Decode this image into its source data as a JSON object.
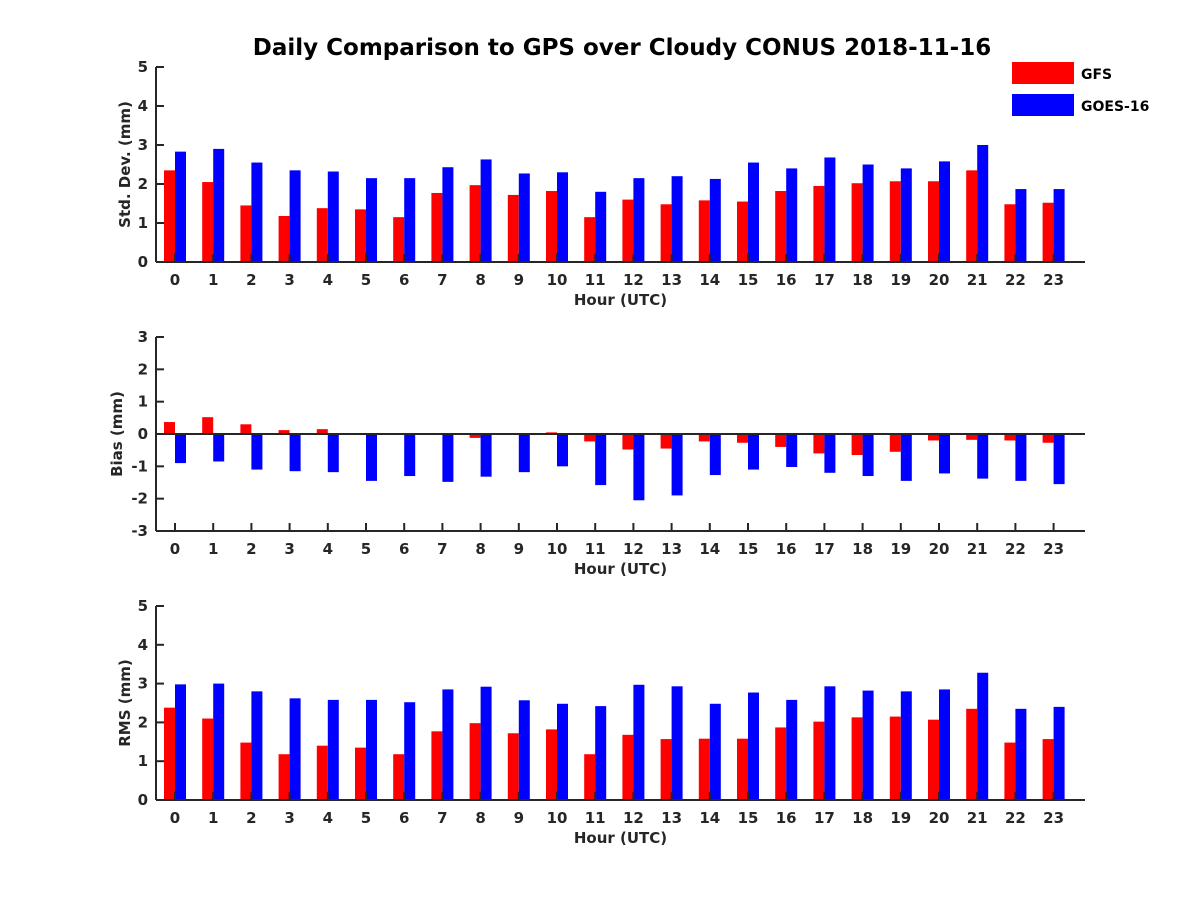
{
  "title": "Daily Comparison to GPS over Cloudy CONUS 2018-11-16",
  "legend": {
    "placement": "top-right",
    "items": [
      {
        "label": "GFS",
        "color": "#ff0000"
      },
      {
        "label": "GOES-16",
        "color": "#0000ff"
      }
    ]
  },
  "chart_data": [
    {
      "type": "bar",
      "xlabel": "Hour (UTC)",
      "ylabel": "Std. Dev. (mm)",
      "ylim": [
        0,
        5
      ],
      "yticks": [
        0,
        1,
        2,
        3,
        4,
        5
      ],
      "categories": [
        "0",
        "1",
        "2",
        "3",
        "4",
        "5",
        "6",
        "7",
        "8",
        "9",
        "10",
        "11",
        "12",
        "13",
        "14",
        "15",
        "16",
        "17",
        "18",
        "19",
        "20",
        "21",
        "22",
        "23"
      ],
      "series": [
        {
          "name": "GFS",
          "color": "#ff0000",
          "values": [
            2.35,
            2.05,
            1.45,
            1.18,
            1.38,
            1.35,
            1.15,
            1.77,
            1.97,
            1.72,
            1.82,
            1.15,
            1.6,
            1.48,
            1.58,
            1.55,
            1.82,
            1.95,
            2.02,
            2.07,
            2.07,
            2.35,
            1.48,
            1.52
          ]
        },
        {
          "name": "GOES-16",
          "color": "#0000ff",
          "values": [
            2.83,
            2.9,
            2.55,
            2.35,
            2.32,
            2.15,
            2.15,
            2.43,
            2.63,
            2.27,
            2.3,
            1.8,
            2.15,
            2.2,
            2.13,
            2.55,
            2.4,
            2.68,
            2.5,
            2.4,
            2.58,
            3.0,
            1.87,
            1.87
          ]
        }
      ]
    },
    {
      "type": "bar",
      "xlabel": "Hour (UTC)",
      "ylabel": "Bias (mm)",
      "ylim": [
        -3,
        3
      ],
      "yticks": [
        -3,
        -2,
        -1,
        0,
        1,
        2,
        3
      ],
      "categories": [
        "0",
        "1",
        "2",
        "3",
        "4",
        "5",
        "6",
        "7",
        "8",
        "9",
        "10",
        "11",
        "12",
        "13",
        "14",
        "15",
        "16",
        "17",
        "18",
        "19",
        "20",
        "21",
        "22",
        "23"
      ],
      "series": [
        {
          "name": "GFS",
          "color": "#ff0000",
          "values": [
            0.37,
            0.52,
            0.3,
            0.12,
            0.15,
            0.0,
            0.02,
            0.0,
            -0.12,
            0.0,
            0.05,
            -0.23,
            -0.48,
            -0.45,
            -0.23,
            -0.27,
            -0.4,
            -0.6,
            -0.65,
            -0.55,
            -0.2,
            -0.18,
            -0.2,
            -0.27
          ]
        },
        {
          "name": "GOES-16",
          "color": "#0000ff",
          "values": [
            -0.9,
            -0.85,
            -1.1,
            -1.15,
            -1.18,
            -1.45,
            -1.3,
            -1.48,
            -1.32,
            -1.18,
            -1.0,
            -1.58,
            -2.05,
            -1.9,
            -1.27,
            -1.1,
            -1.02,
            -1.2,
            -1.3,
            -1.45,
            -1.22,
            -1.38,
            -1.45,
            -1.55
          ]
        }
      ]
    },
    {
      "type": "bar",
      "xlabel": "Hour (UTC)",
      "ylabel": "RMS (mm)",
      "ylim": [
        0,
        5
      ],
      "yticks": [
        0,
        1,
        2,
        3,
        4,
        5
      ],
      "categories": [
        "0",
        "1",
        "2",
        "3",
        "4",
        "5",
        "6",
        "7",
        "8",
        "9",
        "10",
        "11",
        "12",
        "13",
        "14",
        "15",
        "16",
        "17",
        "18",
        "19",
        "20",
        "21",
        "22",
        "23"
      ],
      "series": [
        {
          "name": "GFS",
          "color": "#ff0000",
          "values": [
            2.38,
            2.1,
            1.48,
            1.18,
            1.4,
            1.35,
            1.18,
            1.77,
            1.98,
            1.72,
            1.82,
            1.18,
            1.68,
            1.57,
            1.58,
            1.58,
            1.87,
            2.02,
            2.13,
            2.15,
            2.07,
            2.35,
            1.48,
            1.57
          ]
        },
        {
          "name": "GOES-16",
          "color": "#0000ff",
          "values": [
            2.98,
            3.0,
            2.8,
            2.62,
            2.58,
            2.58,
            2.52,
            2.85,
            2.92,
            2.57,
            2.48,
            2.42,
            2.97,
            2.93,
            2.48,
            2.77,
            2.58,
            2.93,
            2.82,
            2.8,
            2.85,
            3.28,
            2.35,
            2.4
          ]
        }
      ]
    }
  ]
}
